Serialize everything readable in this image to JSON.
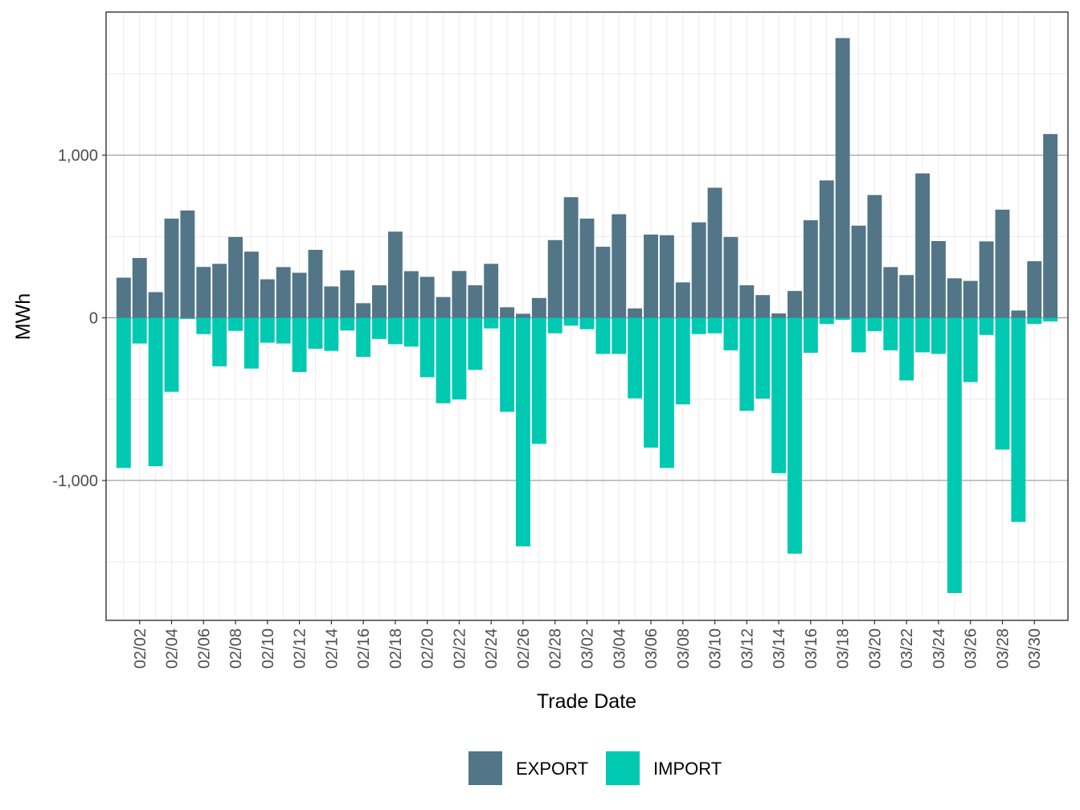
{
  "chart_data": {
    "type": "bar",
    "stacked": "diverging",
    "xlabel": "Trade Date",
    "ylabel": "MWh",
    "ylim": [
      -1860,
      1880
    ],
    "y_ticks": [
      -1000,
      0,
      1000
    ],
    "y_tick_labels": [
      "-1,000",
      "0",
      "1,000"
    ],
    "y_minor_ticks": [
      -1500,
      -500,
      500,
      1500
    ],
    "grid": true,
    "legend_position": "bottom",
    "categories": [
      "02/01",
      "02/02",
      "02/03",
      "02/04",
      "02/05",
      "02/06",
      "02/07",
      "02/08",
      "02/09",
      "02/10",
      "02/11",
      "02/12",
      "02/13",
      "02/14",
      "02/15",
      "02/16",
      "02/17",
      "02/18",
      "02/19",
      "02/20",
      "02/21",
      "02/22",
      "02/23",
      "02/24",
      "02/25",
      "02/26",
      "02/27",
      "02/28",
      "03/01",
      "03/02",
      "03/03",
      "03/04",
      "03/05",
      "03/06",
      "03/07",
      "03/08",
      "03/09",
      "03/10",
      "03/11",
      "03/12",
      "03/13",
      "03/14",
      "03/15",
      "03/16",
      "03/17",
      "03/18",
      "03/19",
      "03/20",
      "03/21",
      "03/22",
      "03/23",
      "03/24",
      "03/25",
      "03/26",
      "03/27",
      "03/28",
      "03/29",
      "03/30",
      "03/31"
    ],
    "x_tick_labels": [
      "02/02",
      "02/04",
      "02/06",
      "02/08",
      "02/10",
      "02/12",
      "02/14",
      "02/16",
      "02/18",
      "02/20",
      "02/22",
      "02/24",
      "02/26",
      "02/28",
      "03/02",
      "03/04",
      "03/06",
      "03/08",
      "03/10",
      "03/12",
      "03/14",
      "03/16",
      "03/18",
      "03/20",
      "03/22",
      "03/24",
      "03/26",
      "03/28",
      "03/30"
    ],
    "series": [
      {
        "name": "EXPORT",
        "color": "#527588",
        "values": [
          247,
          368,
          158,
          610,
          660,
          313,
          332,
          497,
          407,
          237,
          312,
          277,
          418,
          193,
          292,
          90,
          200,
          530,
          287,
          252,
          128,
          288,
          200,
          332,
          65,
          25,
          122,
          478,
          742,
          610,
          437,
          637,
          58,
          512,
          508,
          218,
          587,
          800,
          497,
          200,
          140,
          27,
          165,
          600,
          845,
          1720,
          567,
          755,
          312,
          263,
          888,
          472,
          243,
          227,
          470,
          665,
          45,
          348,
          1130
        ]
      },
      {
        "name": "IMPORT",
        "color": "#00c9b2",
        "values": [
          -923,
          -158,
          -912,
          -455,
          -7,
          -100,
          -298,
          -80,
          -312,
          -153,
          -158,
          -333,
          -190,
          -203,
          -78,
          -240,
          -130,
          -162,
          -177,
          -365,
          -525,
          -502,
          -320,
          -65,
          -578,
          -1405,
          -775,
          -95,
          -48,
          -70,
          -222,
          -222,
          -495,
          -798,
          -923,
          -532,
          -100,
          -95,
          -200,
          -572,
          -497,
          -955,
          -1450,
          -215,
          -38,
          -12,
          -212,
          -82,
          -200,
          -385,
          -212,
          -222,
          -1692,
          -395,
          -105,
          -810,
          -1255,
          -38,
          -22
        ]
      }
    ]
  }
}
